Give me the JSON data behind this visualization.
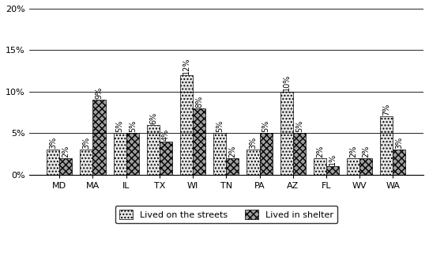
{
  "categories": [
    "MD",
    "MA",
    "IL",
    "TX",
    "WI",
    "TN",
    "PA",
    "AZ",
    "FL",
    "WV",
    "WA"
  ],
  "streets": [
    3,
    3,
    5,
    6,
    12,
    5,
    3,
    10,
    2,
    2,
    7
  ],
  "shelter": [
    2,
    9,
    5,
    4,
    8,
    2,
    5,
    5,
    1,
    2,
    3
  ],
  "streets_color": "#e8e8e8",
  "shelter_color": "#a0a0a0",
  "streets_hatch": "....",
  "shelter_hatch": "xxxx",
  "ylim": [
    0,
    20
  ],
  "yticks": [
    0,
    5,
    10,
    15,
    20
  ],
  "ytick_labels": [
    "0%",
    "5%",
    "10%",
    "15%",
    "20%"
  ],
  "legend_streets": "Lived on the streets",
  "legend_shelter": "Lived in shelter",
  "bar_width": 0.38,
  "label_fontsize": 7,
  "tick_fontsize": 8,
  "legend_fontsize": 8,
  "figsize": [
    5.43,
    3.4
  ],
  "dpi": 100
}
